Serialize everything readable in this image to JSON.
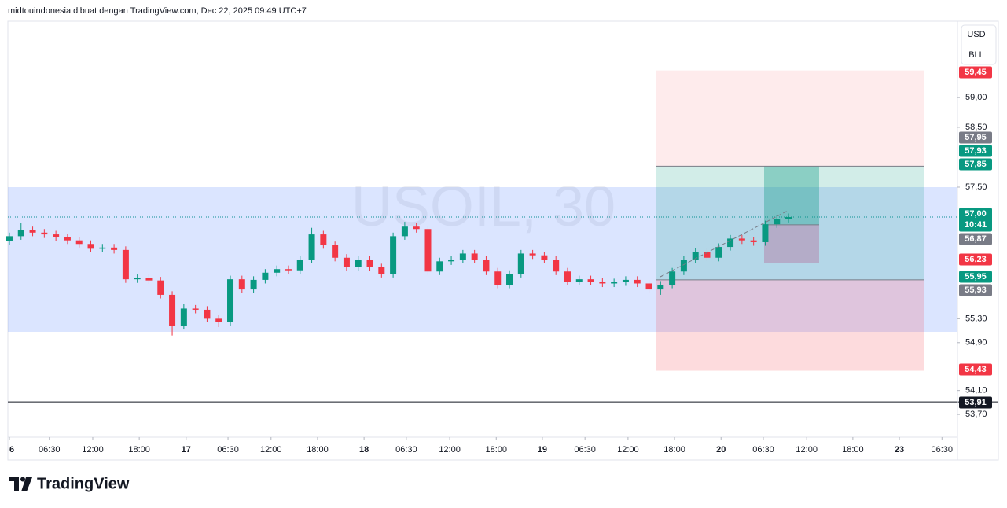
{
  "header": "midtouindonesia dibuat dengan TradingView.com, Dec 22, 2025 09:49 UTC+7",
  "toolbar": [
    "USD",
    "BLL"
  ],
  "logo": "TradingView",
  "chart_data": {
    "type": "candlestick",
    "title": "USOIL, 30",
    "x": [
      0,
      3,
      6,
      9,
      12,
      15,
      18,
      21,
      24,
      27,
      30,
      33,
      36,
      39,
      42,
      45,
      48,
      51,
      54,
      57,
      60,
      63,
      66,
      69,
      72,
      75,
      78,
      81,
      84,
      87,
      90,
      93,
      96,
      99,
      102,
      105,
      108,
      111,
      114,
      117,
      120,
      123,
      126,
      129,
      132,
      135,
      138,
      141,
      144,
      147,
      150,
      153,
      156,
      159,
      162,
      165,
      168,
      171,
      174,
      177,
      180,
      183,
      186,
      189,
      192,
      195,
      198,
      201
    ],
    "open": [
      56.6,
      56.68,
      56.79,
      56.74,
      56.71,
      56.66,
      56.61,
      56.55,
      56.47,
      56.49,
      56.45,
      55.96,
      55.98,
      55.94,
      55.7,
      55.18,
      55.47,
      55.45,
      55.3,
      55.24,
      55.96,
      55.79,
      55.95,
      56.07,
      56.13,
      56.11,
      56.29,
      56.71,
      56.53,
      56.32,
      56.16,
      56.29,
      56.16,
      56.05,
      56.68,
      56.84,
      56.8,
      56.09,
      56.26,
      56.29,
      56.39,
      56.29,
      56.09,
      55.87,
      56.05,
      56.39,
      56.36,
      56.29,
      56.09,
      55.92,
      55.96,
      55.92,
      55.89,
      55.91,
      55.95,
      55.89,
      55.79,
      55.87,
      56.09,
      56.29,
      56.42,
      56.32,
      56.5,
      56.64,
      56.61,
      56.58,
      56.88,
      56.97
    ],
    "high": [
      56.74,
      56.9,
      56.84,
      56.8,
      56.77,
      56.72,
      56.67,
      56.61,
      56.55,
      56.55,
      56.51,
      56.04,
      56.04,
      56.0,
      55.76,
      55.55,
      55.53,
      55.51,
      55.36,
      56.02,
      56.02,
      56.01,
      56.13,
      56.19,
      56.19,
      56.35,
      56.82,
      56.77,
      56.59,
      56.38,
      56.35,
      56.35,
      56.22,
      56.74,
      56.92,
      56.9,
      56.86,
      56.32,
      56.35,
      56.45,
      56.45,
      56.35,
      56.15,
      56.11,
      56.45,
      56.45,
      56.42,
      56.35,
      56.15,
      56.02,
      56.02,
      55.98,
      55.97,
      56.01,
      56.01,
      55.95,
      55.93,
      56.15,
      56.35,
      56.48,
      56.48,
      56.56,
      56.7,
      56.7,
      56.67,
      56.94,
      57.03,
      57.06
    ],
    "low": [
      56.54,
      56.62,
      56.68,
      56.65,
      56.6,
      56.55,
      56.49,
      56.41,
      56.41,
      56.39,
      55.9,
      55.9,
      55.88,
      55.64,
      55.02,
      55.12,
      55.39,
      55.24,
      55.16,
      55.18,
      55.73,
      55.73,
      55.89,
      56.01,
      56.05,
      56.05,
      56.23,
      56.47,
      56.26,
      56.1,
      56.1,
      56.1,
      55.99,
      55.99,
      56.62,
      56.74,
      56.03,
      56.03,
      56.2,
      56.23,
      56.23,
      56.03,
      55.81,
      55.81,
      55.99,
      56.3,
      56.23,
      56.03,
      55.86,
      55.86,
      55.86,
      55.83,
      55.83,
      55.85,
      55.83,
      55.73,
      55.7,
      55.81,
      56.03,
      56.23,
      56.26,
      56.26,
      56.44,
      56.55,
      56.52,
      56.52,
      56.82,
      56.91
    ],
    "close": [
      56.68,
      56.79,
      56.74,
      56.71,
      56.66,
      56.61,
      56.55,
      56.47,
      56.49,
      56.45,
      55.96,
      55.98,
      55.94,
      55.7,
      55.18,
      55.47,
      55.45,
      55.3,
      55.24,
      55.96,
      55.79,
      55.95,
      56.07,
      56.13,
      56.11,
      56.29,
      56.71,
      56.53,
      56.32,
      56.16,
      56.29,
      56.16,
      56.05,
      56.68,
      56.84,
      56.8,
      56.09,
      56.26,
      56.29,
      56.39,
      56.29,
      56.09,
      55.87,
      56.05,
      56.39,
      56.36,
      56.29,
      56.09,
      55.92,
      55.96,
      55.92,
      55.89,
      55.91,
      55.95,
      55.89,
      55.79,
      55.87,
      56.09,
      56.29,
      56.42,
      56.32,
      56.5,
      56.64,
      56.61,
      56.58,
      56.88,
      56.97,
      57.0
    ],
    "up_color": "#089981",
    "down_color": "#f23645",
    "xlim": [
      -0.4,
      244.6
    ],
    "xticks": [
      {
        "value": 0,
        "label": "6"
      },
      {
        "value": 10.3,
        "label": "06:30"
      },
      {
        "value": 21.5,
        "label": "12:00"
      },
      {
        "value": 33.5,
        "label": "18:00"
      },
      {
        "value": 45.6,
        "label": "17"
      },
      {
        "value": 56.4,
        "label": "06:30"
      },
      {
        "value": 67.5,
        "label": "12:00"
      },
      {
        "value": 79.5,
        "label": "18:00"
      },
      {
        "value": 91.5,
        "label": "18"
      },
      {
        "value": 102.4,
        "label": "06:30"
      },
      {
        "value": 113.6,
        "label": "12:00"
      },
      {
        "value": 125.6,
        "label": "18:00"
      },
      {
        "value": 137.5,
        "label": "19"
      },
      {
        "value": 148.5,
        "label": "06:30"
      },
      {
        "value": 159.6,
        "label": "12:00"
      },
      {
        "value": 171.6,
        "label": "18:00"
      },
      {
        "value": 183.6,
        "label": "20"
      },
      {
        "value": 194.5,
        "label": "06:30"
      },
      {
        "value": 205.7,
        "label": "12:00"
      },
      {
        "value": 217.6,
        "label": "18:00"
      },
      {
        "value": 229.6,
        "label": "23"
      },
      {
        "value": 240.6,
        "label": "06:30"
      }
    ],
    "ylim": [
      53.32,
      60.26
    ],
    "yticks": [
      {
        "value": 59,
        "label": "59,00"
      },
      {
        "value": 58.5,
        "label": "58,50"
      },
      {
        "value": 57.5,
        "label": "57,50"
      },
      {
        "value": 55.3,
        "label": "55,30"
      },
      {
        "value": 54.9,
        "label": "54,90"
      },
      {
        "value": 54.1,
        "label": "54,10"
      },
      {
        "value": 53.7,
        "label": "53,70"
      }
    ],
    "price_labels": [
      {
        "value": 59.45,
        "label": "59,45",
        "color": "#f23645"
      },
      {
        "value": 57.95,
        "label": "57,95",
        "color": "#787b86"
      },
      {
        "value": 57.93,
        "label": "57,93",
        "color": "#089981"
      },
      {
        "value": 57.85,
        "label": "57,85",
        "color": "#089981"
      },
      {
        "value": 57,
        "label": "57,00",
        "time": "10:41",
        "color": "#089981"
      },
      {
        "value": 56.87,
        "label": "56,87",
        "color": "#787b86"
      },
      {
        "value": 56.23,
        "label": "56,23",
        "color": "#f23645"
      },
      {
        "value": 55.95,
        "label": "55,95",
        "color": "#089981"
      },
      {
        "value": 55.93,
        "label": "55,93",
        "color": "#787b86"
      },
      {
        "value": 54.43,
        "label": "54,43",
        "color": "#f23645"
      },
      {
        "value": 53.91,
        "label": "53,91",
        "color": "#131722"
      }
    ]
  }
}
